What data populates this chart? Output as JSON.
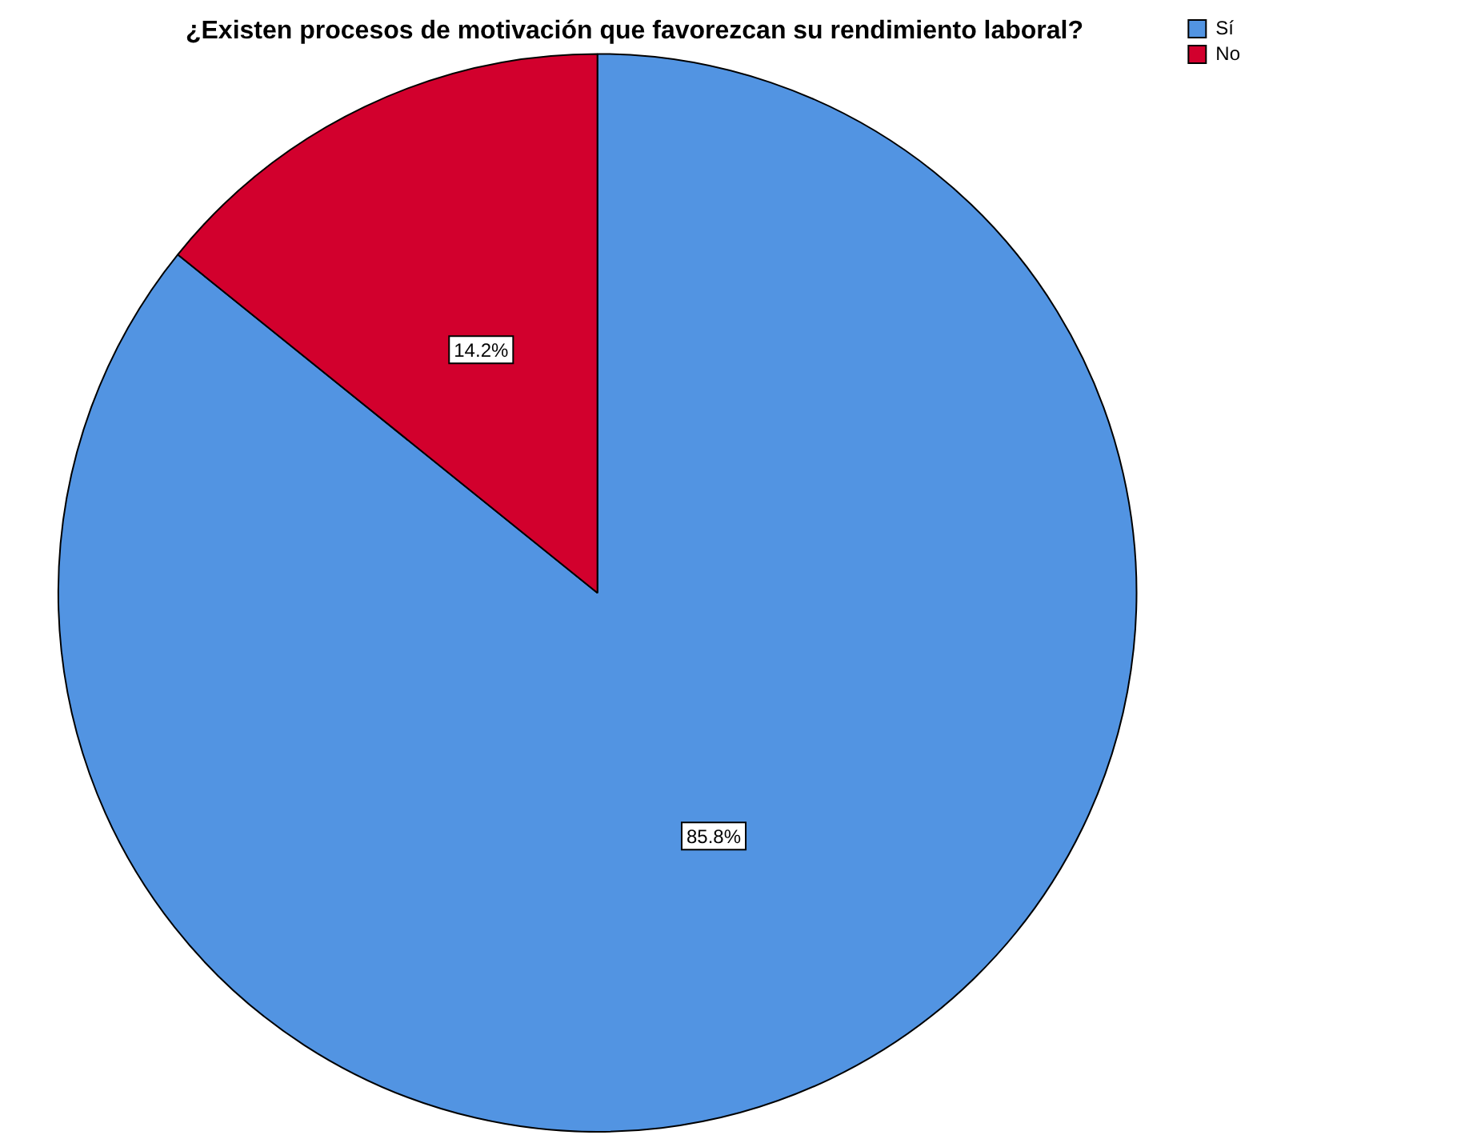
{
  "chart_data": {
    "type": "pie",
    "title": "¿Existen procesos de motivación que favorezcan su rendimiento laboral?",
    "categories": [
      "Sí",
      "No"
    ],
    "values": [
      85.8,
      14.2
    ],
    "value_labels": [
      "85.8%",
      "14.2%"
    ],
    "colors": [
      "#5294e2",
      "#d2002d"
    ],
    "legend": "top right"
  }
}
